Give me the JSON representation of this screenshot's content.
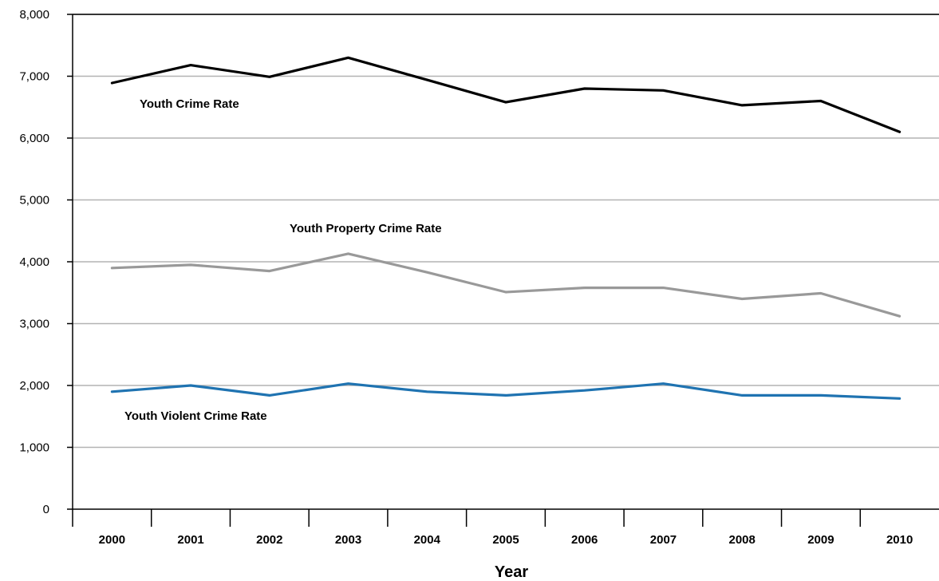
{
  "chart_data": {
    "type": "line",
    "title": "",
    "xlabel": "Year",
    "ylabel": "",
    "x": [
      "2000",
      "2001",
      "2002",
      "2003",
      "2004",
      "2005",
      "2006",
      "2007",
      "2008",
      "2009",
      "2010"
    ],
    "ylim": [
      0,
      8000
    ],
    "yticks": [
      "0",
      "1,000",
      "2,000",
      "3,000",
      "4,000",
      "5,000",
      "6,000",
      "7,000",
      "8,000"
    ],
    "grid": true,
    "legend": "none",
    "series": [
      {
        "name": "Youth Crime Rate",
        "color": "#000000",
        "values": [
          6890,
          7180,
          6990,
          7300,
          6940,
          6580,
          6800,
          6770,
          6530,
          6600,
          6100
        ]
      },
      {
        "name": "Youth Property Crime Rate",
        "color": "#999999",
        "values": [
          3900,
          3950,
          3850,
          4130,
          3830,
          3510,
          3580,
          3580,
          3400,
          3490,
          3120
        ]
      },
      {
        "name": "Youth Violent Crime Rate",
        "color": "#1f73b1",
        "values": [
          1900,
          2000,
          1840,
          2030,
          1900,
          1840,
          1920,
          2030,
          1840,
          1840,
          1790
        ]
      }
    ]
  }
}
